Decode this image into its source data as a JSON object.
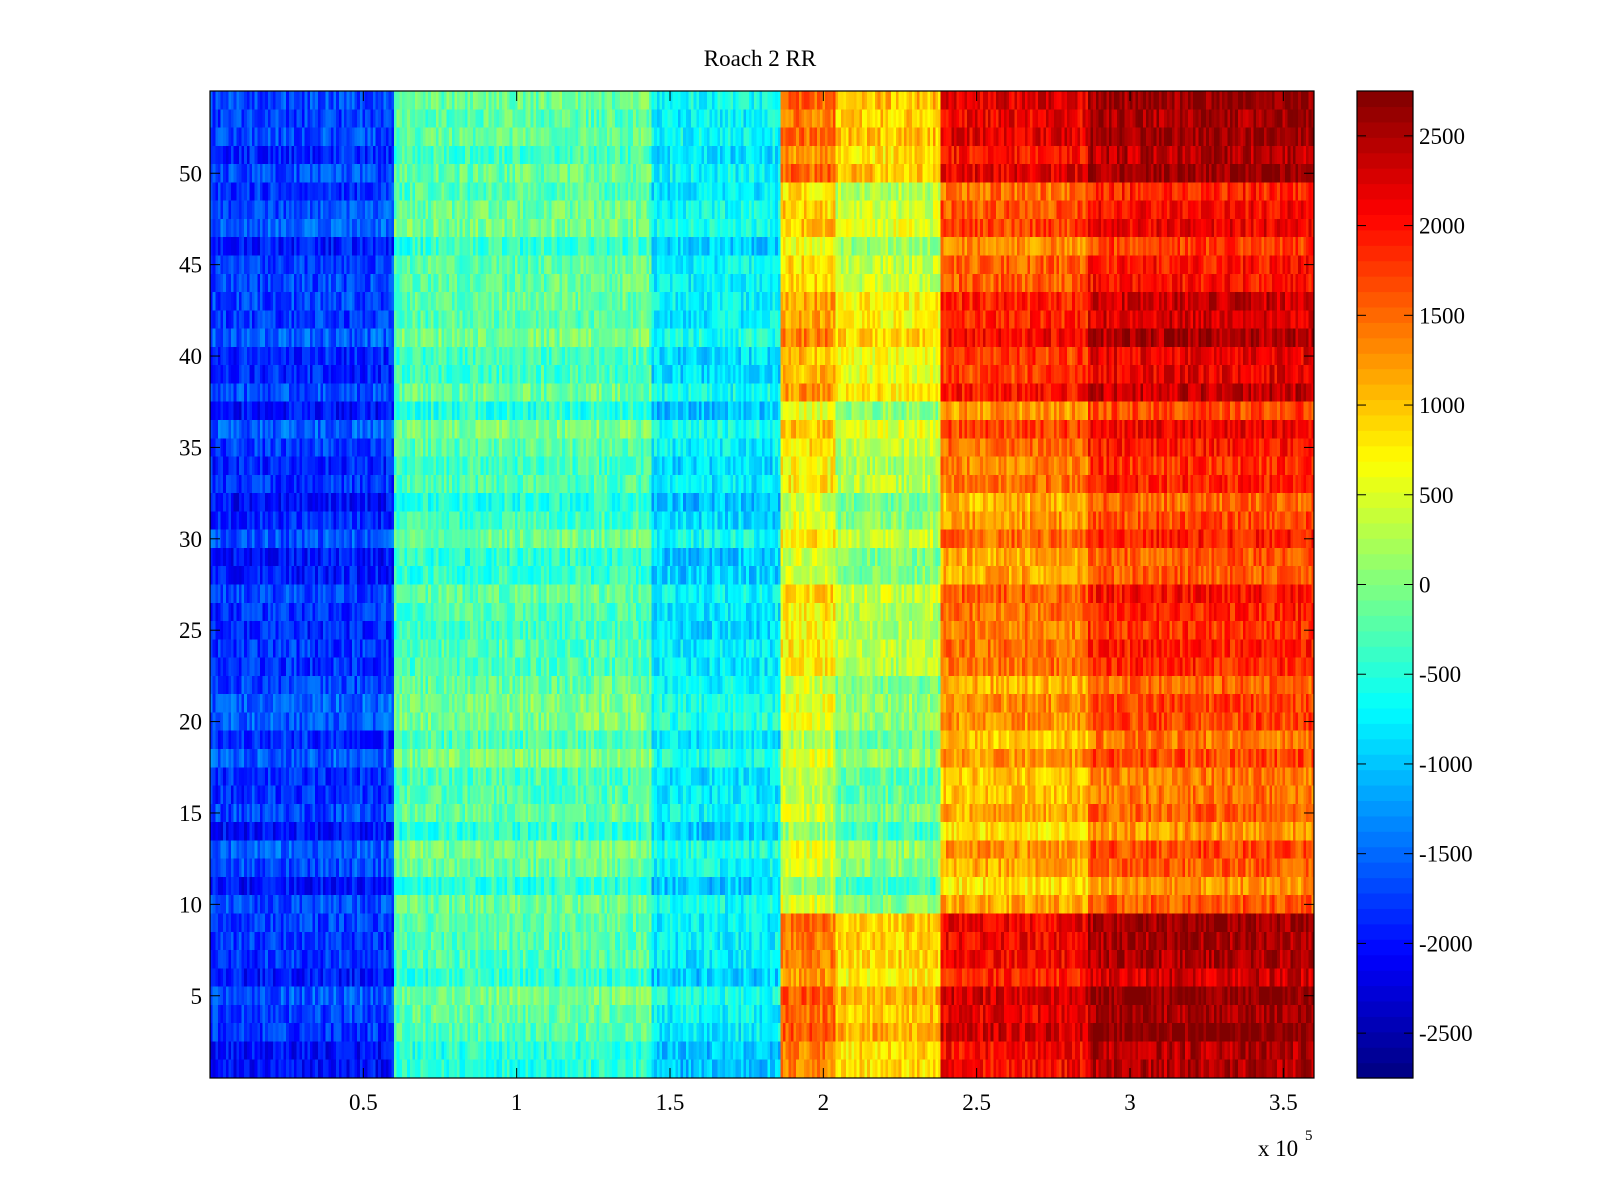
{
  "chart_data": {
    "type": "heatmap",
    "title": "Roach 2 RR",
    "xlabel": "",
    "ylabel": "",
    "x_multiplier_label": {
      "prefix": "x 10",
      "exponent": "5"
    },
    "xlim": [
      0,
      3.6
    ],
    "ylim": [
      0.5,
      54.5
    ],
    "x_ticks": [
      0.5,
      1,
      1.5,
      2,
      2.5,
      3,
      3.5
    ],
    "x_tick_labels": [
      "0.5",
      "1",
      "1.5",
      "2",
      "2.5",
      "3",
      "3.5"
    ],
    "y_ticks": [
      5,
      10,
      15,
      20,
      25,
      30,
      35,
      40,
      45,
      50
    ],
    "y_tick_labels": [
      "5",
      "10",
      "15",
      "20",
      "25",
      "30",
      "35",
      "40",
      "45",
      "50"
    ],
    "rows": 54,
    "colormap": "jet",
    "color_range": [
      -2750,
      2750
    ],
    "colorbar_ticks": [
      2500,
      2000,
      1500,
      1000,
      500,
      0,
      -500,
      -1000,
      -1500,
      -2000,
      -2500
    ],
    "colorbar_tick_labels": [
      "2500",
      "2000",
      "1500",
      "1000",
      "500",
      "0",
      "-500",
      "-1000",
      "-1500",
      "-2000",
      "-2500"
    ],
    "column_bands": [
      {
        "x_start": 0.0,
        "x_end": 0.6,
        "base_value": -1800
      },
      {
        "x_start": 0.6,
        "x_end": 1.44,
        "base_value": -300
      },
      {
        "x_start": 1.44,
        "x_end": 1.86,
        "base_value": -850
      },
      {
        "x_start": 1.86,
        "x_end": 2.04,
        "base_value": 700
      },
      {
        "x_start": 2.04,
        "x_end": 2.38,
        "base_value": 200
      },
      {
        "x_start": 2.38,
        "x_end": 2.86,
        "base_value": 1350
      },
      {
        "x_start": 2.86,
        "x_end": 3.6,
        "base_value": 1750
      }
    ],
    "hot_row_groups": [
      {
        "y_start": 1,
        "y_end": 3,
        "boost": 800
      },
      {
        "y_start": 4,
        "y_end": 9,
        "boost": 600
      },
      {
        "y_start": 38,
        "y_end": 43,
        "boost": 350
      },
      {
        "y_start": 50,
        "y_end": 54,
        "boost": 600
      }
    ],
    "cool_row_groups": [
      {
        "y_start": 10,
        "y_end": 22,
        "boost": -450
      },
      {
        "y_start": 28,
        "y_end": 32,
        "boost": -150
      }
    ],
    "x_gradient_per_unit": 250,
    "noise_amplitude": 330
  }
}
